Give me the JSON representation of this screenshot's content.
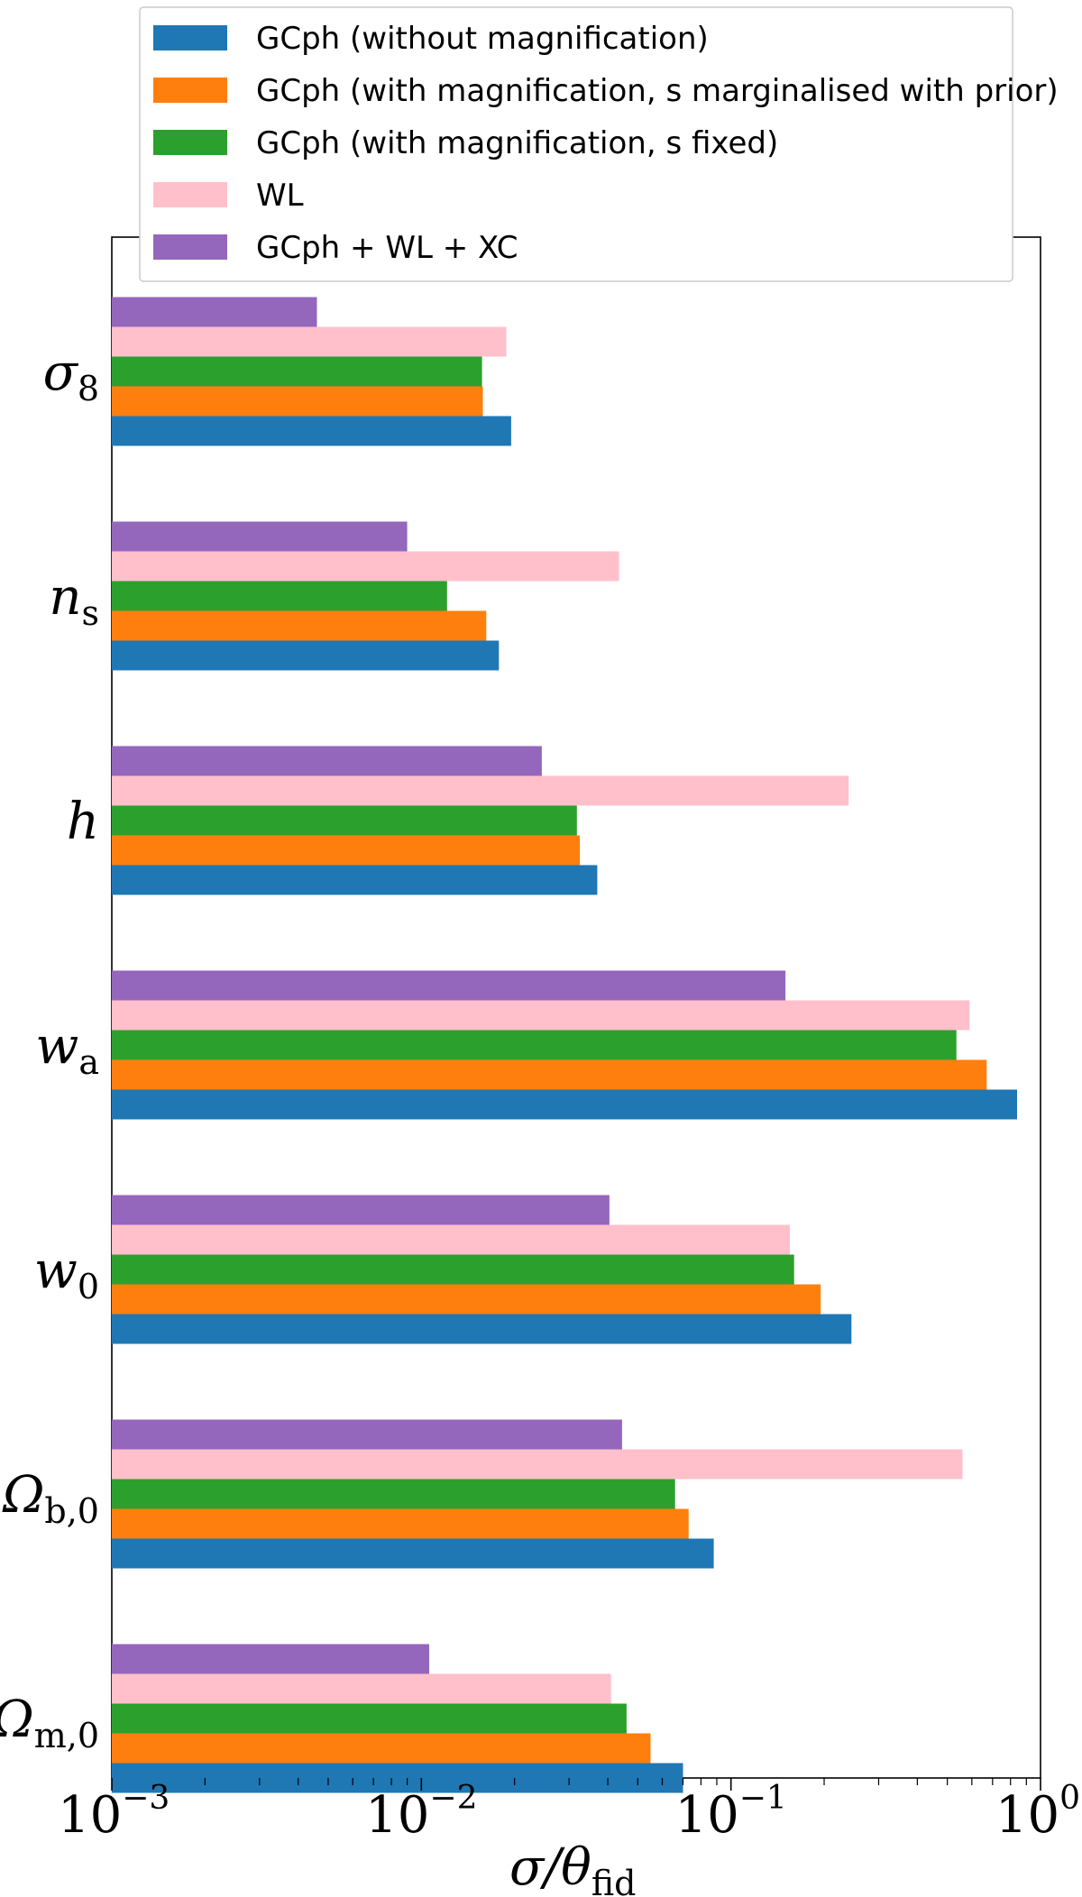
{
  "chart_data": {
    "type": "bar",
    "orientation": "horizontal",
    "xscale": "log",
    "xlim": [
      0.001,
      1
    ],
    "xlabel": "σ/θ",
    "xlabel_sub": "fid",
    "x_ticks": [
      {
        "value": 0.001,
        "base": "10",
        "exp": "−3"
      },
      {
        "value": 0.01,
        "base": "10",
        "exp": "−2"
      },
      {
        "value": 0.1,
        "base": "10",
        "exp": "−1"
      },
      {
        "value": 1,
        "base": "10",
        "exp": "0"
      }
    ],
    "categories": [
      {
        "main": "σ",
        "sub": "8"
      },
      {
        "main": "n",
        "sub": "s"
      },
      {
        "main": "h",
        "sub": ""
      },
      {
        "main": "w",
        "sub": "a"
      },
      {
        "main": "w",
        "sub": "0"
      },
      {
        "main": "Ω",
        "sub": "b,0"
      },
      {
        "main": "Ω",
        "sub": "m,0"
      }
    ],
    "legend_position": "top-center",
    "series": [
      {
        "name": "GCph (without magnification)",
        "color": "#1f77b4",
        "values": [
          0.0195,
          0.0178,
          0.037,
          0.84,
          0.245,
          0.088,
          0.07
        ]
      },
      {
        "name": "GCph (with magnification, s marginalised with prior)",
        "color": "#ff7f0e",
        "values": [
          0.0158,
          0.0162,
          0.0325,
          0.67,
          0.195,
          0.073,
          0.055
        ]
      },
      {
        "name": "GCph (with magnification, s fixed)",
        "color": "#2ca02c",
        "values": [
          0.0157,
          0.0121,
          0.0318,
          0.535,
          0.16,
          0.066,
          0.046
        ]
      },
      {
        "name": "WL",
        "color": "#ffc0cb",
        "values": [
          0.0188,
          0.0435,
          0.24,
          0.59,
          0.155,
          0.56,
          0.041
        ]
      },
      {
        "name": "GCph + WL + XC",
        "color": "#9467bd",
        "values": [
          0.0046,
          0.009,
          0.0245,
          0.15,
          0.0405,
          0.0445,
          0.0106
        ]
      }
    ]
  }
}
